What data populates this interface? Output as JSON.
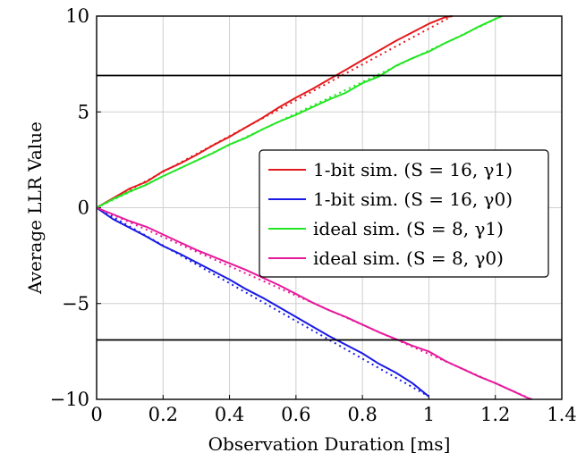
{
  "chart_data": {
    "type": "line",
    "xlabel": "Observation Duration [ms]",
    "ylabel": "Average LLR Value",
    "xlim": [
      0,
      1.4
    ],
    "ylim": [
      -10,
      10
    ],
    "xticks": [
      {
        "v": 0,
        "label": "0"
      },
      {
        "v": 0.2,
        "label": "0.2"
      },
      {
        "v": 0.4,
        "label": "0.4"
      },
      {
        "v": 0.6,
        "label": "0.6"
      },
      {
        "v": 0.8,
        "label": "0.8"
      },
      {
        "v": 1.0,
        "label": "1"
      },
      {
        "v": 1.2,
        "label": "1.2"
      },
      {
        "v": 1.4,
        "label": "1.4"
      }
    ],
    "yticks": [
      {
        "v": -10,
        "label": "−10"
      },
      {
        "v": -5,
        "label": "−5"
      },
      {
        "v": 0,
        "label": "0"
      },
      {
        "v": 5,
        "label": "5"
      },
      {
        "v": 10,
        "label": "10"
      }
    ],
    "grid": true,
    "legend_position": "right",
    "thresholds": [
      6.9,
      -6.9
    ],
    "series": [
      {
        "name": "1-bit sim. (S = 16, γ1)",
        "color": "#e31a1c",
        "x": [
          0,
          0.05,
          0.1,
          0.15,
          0.2,
          0.25,
          0.3,
          0.35,
          0.4,
          0.45,
          0.5,
          0.55,
          0.6,
          0.65,
          0.7,
          0.75,
          0.8,
          0.85,
          0.9,
          0.95,
          1.0,
          1.05,
          1.07
        ],
        "y": [
          0,
          0.5,
          1.0,
          1.35,
          1.9,
          2.3,
          2.75,
          3.25,
          3.7,
          4.2,
          4.7,
          5.25,
          5.75,
          6.2,
          6.7,
          7.2,
          7.7,
          8.2,
          8.7,
          9.15,
          9.6,
          9.95,
          10
        ]
      },
      {
        "name": "1-bit sim. (S = 16, γ0)",
        "color": "#1a1ae6",
        "x": [
          0,
          0.05,
          0.1,
          0.15,
          0.2,
          0.25,
          0.3,
          0.35,
          0.4,
          0.45,
          0.5,
          0.55,
          0.6,
          0.65,
          0.7,
          0.75,
          0.8,
          0.85,
          0.9,
          0.95,
          1.0
        ],
        "y": [
          0,
          -0.6,
          -1.05,
          -1.5,
          -2.0,
          -2.4,
          -2.85,
          -3.3,
          -3.75,
          -4.25,
          -4.7,
          -5.2,
          -5.7,
          -6.2,
          -6.7,
          -7.15,
          -7.6,
          -8.15,
          -8.6,
          -9.15,
          -9.85
        ]
      },
      {
        "name": "ideal sim. (S = 8, γ1)",
        "color": "#22e622",
        "x": [
          0,
          0.05,
          0.1,
          0.15,
          0.2,
          0.25,
          0.3,
          0.35,
          0.4,
          0.45,
          0.5,
          0.55,
          0.6,
          0.65,
          0.7,
          0.75,
          0.8,
          0.85,
          0.9,
          0.95,
          1.0,
          1.05,
          1.1,
          1.15,
          1.2,
          1.22
        ],
        "y": [
          0,
          0.45,
          0.85,
          1.2,
          1.65,
          2.05,
          2.45,
          2.85,
          3.3,
          3.65,
          4.1,
          4.5,
          4.85,
          5.25,
          5.65,
          6.0,
          6.5,
          6.85,
          7.4,
          7.8,
          8.15,
          8.6,
          9.0,
          9.45,
          9.85,
          10
        ]
      },
      {
        "name": "ideal sim. (S = 8, γ0)",
        "color": "#e61a9a",
        "x": [
          0,
          0.05,
          0.1,
          0.15,
          0.2,
          0.25,
          0.3,
          0.35,
          0.4,
          0.45,
          0.5,
          0.55,
          0.6,
          0.65,
          0.7,
          0.75,
          0.8,
          0.85,
          0.9,
          0.95,
          1.0,
          1.05,
          1.1,
          1.15,
          1.2,
          1.25,
          1.3,
          1.31
        ],
        "y": [
          0,
          -0.35,
          -0.7,
          -1.0,
          -1.4,
          -1.8,
          -2.2,
          -2.55,
          -2.9,
          -3.25,
          -3.65,
          -4.05,
          -4.5,
          -4.95,
          -5.35,
          -5.7,
          -6.1,
          -6.5,
          -6.85,
          -7.2,
          -7.5,
          -8.0,
          -8.4,
          -8.8,
          -9.15,
          -9.55,
          -9.95,
          -10
        ]
      }
    ]
  }
}
